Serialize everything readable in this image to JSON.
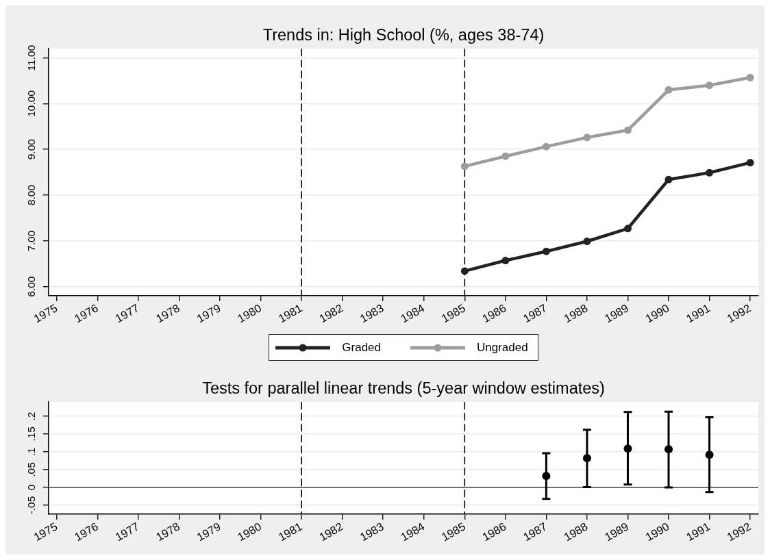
{
  "chart_data": [
    {
      "type": "line",
      "title": "Trends in: High School (%, ages 38-74)",
      "x": [
        1985,
        1986,
        1987,
        1988,
        1989,
        1990,
        1991,
        1992
      ],
      "series": [
        {
          "name": "Graded",
          "color": "#222222",
          "values": [
            6.34,
            6.57,
            6.77,
            6.99,
            7.27,
            8.34,
            8.49,
            8.71
          ]
        },
        {
          "name": "Ungraded",
          "color": "#9c9c9c",
          "values": [
            8.63,
            8.85,
            9.06,
            9.26,
            9.42,
            10.3,
            10.4,
            10.57
          ]
        }
      ],
      "xlim": [
        1974.8,
        1992.2
      ],
      "xticks": [
        1975,
        1976,
        1977,
        1978,
        1979,
        1980,
        1981,
        1982,
        1983,
        1984,
        1985,
        1986,
        1987,
        1988,
        1989,
        1990,
        1991,
        1992
      ],
      "ylim": [
        5.8,
        11.2
      ],
      "yticks": [
        {
          "value": 6,
          "label": "6.00"
        },
        {
          "value": 7,
          "label": "7.00"
        },
        {
          "value": 8,
          "label": "8.00"
        },
        {
          "value": 9,
          "label": "9.00"
        },
        {
          "value": 10,
          "label": "10.00"
        },
        {
          "value": 11,
          "label": "11.00"
        }
      ],
      "grid": "y",
      "legend": "bottom",
      "marker": "circle",
      "line_style": "solid",
      "ref_lines": [
        {
          "axis": "x",
          "value": 1981,
          "color": "#000000",
          "line_style": "dashed"
        },
        {
          "axis": "x",
          "value": 1985,
          "color": "#000000",
          "line_style": "dashed"
        }
      ]
    },
    {
      "type": "scatter",
      "title": "Tests for parallel linear trends (5-year window estimates)",
      "x": [
        1987,
        1988,
        1989,
        1990,
        1991
      ],
      "values": [
        0.032,
        0.082,
        0.109,
        0.107,
        0.092
      ],
      "errors": [
        [
          -0.032,
          0.096
        ],
        [
          0.001,
          0.162
        ],
        [
          0.008,
          0.212
        ],
        [
          0.0,
          0.213
        ],
        [
          -0.013,
          0.197
        ]
      ],
      "color": "#000000",
      "xlim": [
        1974.8,
        1992.2
      ],
      "xticks": [
        1975,
        1976,
        1977,
        1978,
        1979,
        1980,
        1981,
        1982,
        1983,
        1984,
        1985,
        1986,
        1987,
        1988,
        1989,
        1990,
        1991,
        1992
      ],
      "ylim": [
        -0.075,
        0.24
      ],
      "yticks": [
        {
          "value": -0.05,
          "label": "-.05"
        },
        0,
        {
          "value": 0.05,
          "label": ".05"
        },
        {
          "value": 0.1,
          "label": ".1"
        },
        {
          "value": 0.15,
          "label": ".15"
        },
        {
          "value": 0.2,
          "label": ".2"
        }
      ],
      "grid": "y",
      "marker": "circle",
      "ref_lines": [
        {
          "axis": "x",
          "value": 1981,
          "color": "#000000",
          "line_style": "dashed"
        },
        {
          "axis": "x",
          "value": 1985,
          "color": "#000000",
          "line_style": "dashed"
        },
        {
          "axis": "y",
          "value": 0,
          "color": "#6e6e6e",
          "line_style": "solid"
        }
      ]
    }
  ]
}
